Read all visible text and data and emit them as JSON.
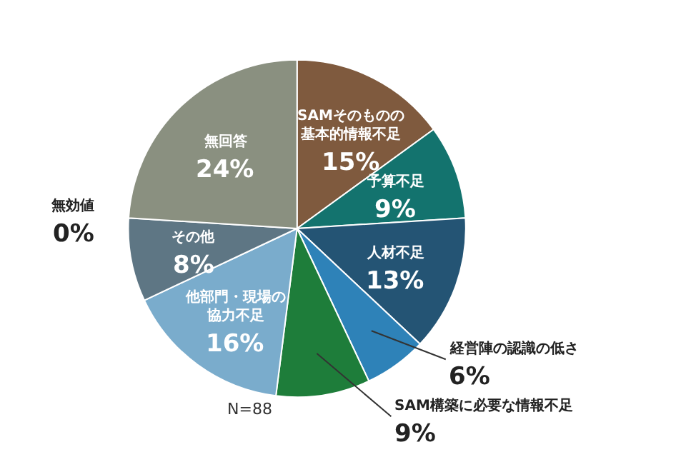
{
  "chart_data": {
    "type": "pie",
    "categories": [
      "SAMそのものの基本的情報不足",
      "予算不足",
      "人材不足",
      "経営陣の認識の低さ",
      "SAM構築に必要な情報不足",
      "他部門・現場の協力不足",
      "その他",
      "無効値",
      "無回答"
    ],
    "values": [
      15,
      9,
      13,
      6,
      9,
      16,
      8,
      0,
      24
    ],
    "value_labels": [
      "15%",
      "9%",
      "13%",
      "6%",
      "9%",
      "16%",
      "8%",
      "0%",
      "24%"
    ],
    "colors": [
      "#7f5a3e",
      "#13736e",
      "#245474",
      "#2e82b8",
      "#1e7d3a",
      "#7aaccc",
      "#5e7684",
      "#444444",
      "#8a9080"
    ],
    "annotations": [
      "N=88"
    ],
    "legend": false
  }
}
